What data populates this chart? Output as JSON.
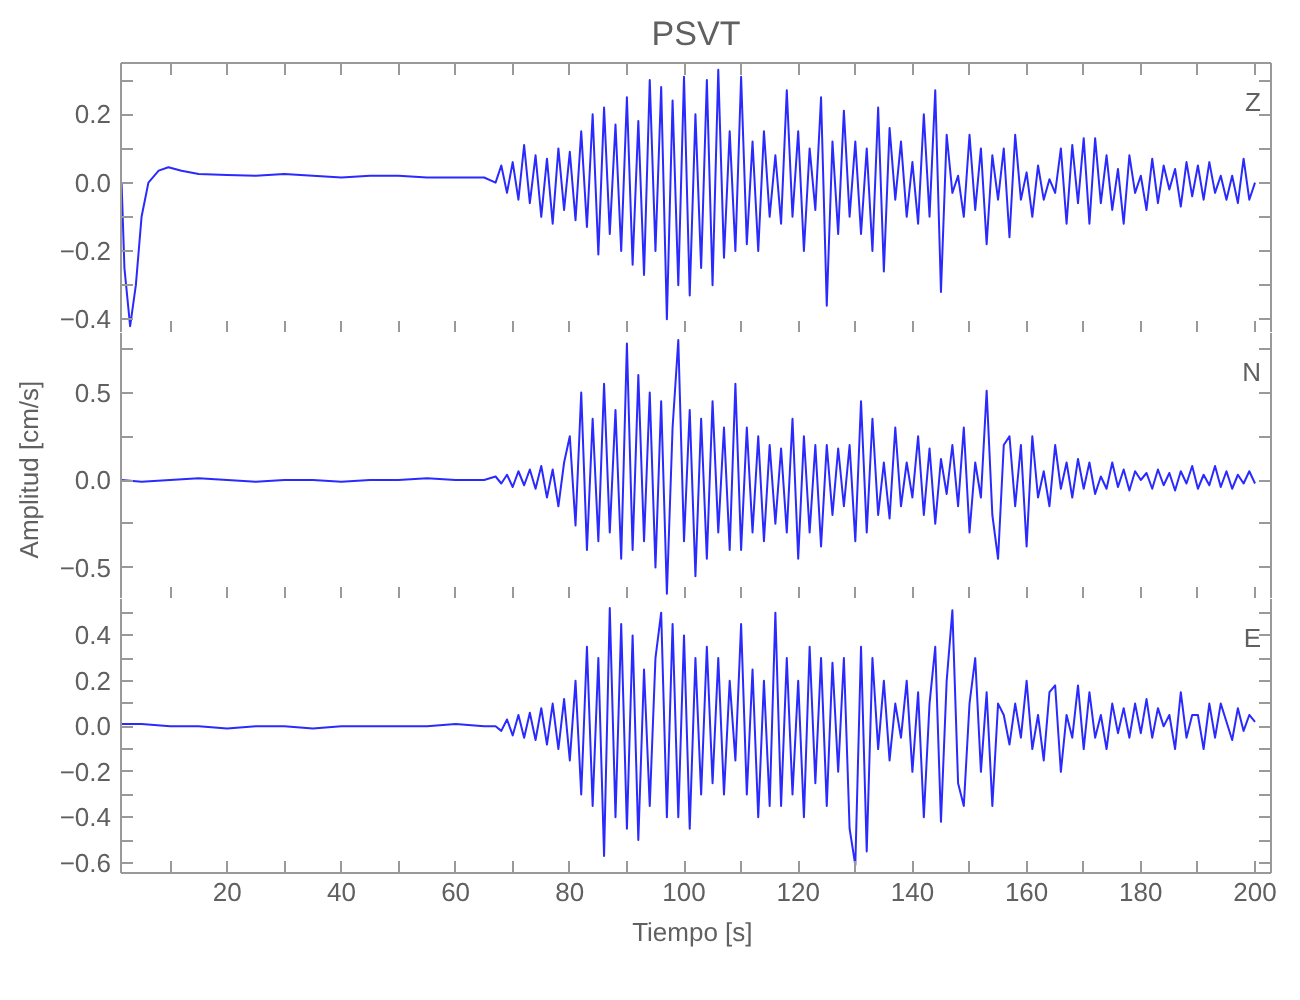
{
  "chart_data": [
    {
      "type": "line",
      "title": "PSVT",
      "xlim": [
        1.4,
        202.8
      ],
      "ylim": [
        -0.44,
        0.35
      ],
      "tick_labels": "y",
      "grid": false,
      "xticks": [
        {
          "value": 10,
          "label": null
        },
        20,
        {
          "value": 30,
          "label": null
        },
        40,
        {
          "value": 50,
          "label": null
        },
        60,
        {
          "value": 70,
          "label": null
        },
        80,
        {
          "value": 90,
          "label": null
        },
        100,
        {
          "value": 110,
          "label": null
        },
        120,
        {
          "value": 130,
          "label": null
        },
        140,
        {
          "value": 150,
          "label": null
        },
        160,
        {
          "value": 170,
          "label": null
        },
        180,
        {
          "value": 190,
          "label": null
        },
        200
      ],
      "yticks": [
        {
          "value": -0.4,
          "label": "−0.4"
        },
        {
          "value": -0.3,
          "label": null
        },
        {
          "value": -0.2,
          "label": "−0.2"
        },
        {
          "value": -0.1,
          "label": null
        },
        {
          "value": 0,
          "label": "0.0"
        },
        {
          "value": 0.1,
          "label": null
        },
        {
          "value": 0.2,
          "label": "0.2"
        },
        {
          "value": 0.3,
          "label": null
        }
      ],
      "series": [
        {
          "name": "Z",
          "color": "#2a2aff",
          "x": [
            1.5,
            2,
            3,
            4,
            5,
            6.2,
            8,
            9.7,
            12,
            15,
            20,
            25,
            30,
            35,
            40,
            45,
            50,
            55,
            60,
            65,
            67,
            68,
            69,
            70,
            71,
            72,
            73,
            74,
            75,
            76,
            77,
            78,
            79,
            80,
            81,
            82,
            83,
            84,
            85,
            86,
            87,
            88,
            89,
            90,
            91,
            92,
            93,
            94,
            95,
            96,
            97,
            98,
            99,
            100,
            101,
            102,
            103,
            104,
            105,
            106,
            107,
            108,
            109,
            110,
            111,
            112,
            113,
            114,
            115,
            116,
            117,
            118,
            119,
            120,
            121,
            122,
            123,
            124,
            125,
            126,
            127,
            128,
            129,
            130,
            131,
            132,
            133,
            134,
            135,
            136,
            137,
            138,
            139,
            140,
            141,
            142,
            143,
            144,
            145,
            146,
            147,
            148,
            149,
            150,
            151,
            152,
            153,
            154,
            155,
            156,
            157,
            158,
            159,
            160,
            161,
            162,
            163,
            164,
            165,
            166,
            167,
            168,
            169,
            170,
            171,
            172,
            173,
            174,
            175,
            176,
            177,
            178,
            179,
            180,
            181,
            182,
            183,
            184,
            185,
            186,
            187,
            188,
            189,
            190,
            191,
            192,
            193,
            194,
            195,
            196,
            197,
            198,
            199,
            200
          ],
          "values": [
            0.0,
            -0.25,
            -0.42,
            -0.3,
            -0.1,
            0.0,
            0.035,
            0.045,
            0.035,
            0.025,
            0.022,
            0.02,
            0.025,
            0.02,
            0.015,
            0.02,
            0.02,
            0.015,
            0.015,
            0.015,
            0.0,
            0.05,
            -0.03,
            0.06,
            -0.05,
            0.11,
            -0.06,
            0.08,
            -0.1,
            0.07,
            -0.12,
            0.1,
            -0.08,
            0.09,
            -0.11,
            0.15,
            -0.13,
            0.2,
            -0.21,
            0.22,
            -0.15,
            0.17,
            -0.2,
            0.25,
            -0.24,
            0.18,
            -0.27,
            0.3,
            -0.2,
            0.28,
            -0.4,
            0.24,
            -0.3,
            0.31,
            -0.33,
            0.2,
            -0.25,
            0.3,
            -0.3,
            0.33,
            -0.22,
            0.15,
            -0.2,
            0.31,
            -0.18,
            0.12,
            -0.2,
            0.15,
            -0.1,
            0.08,
            -0.12,
            0.27,
            -0.1,
            0.15,
            -0.2,
            0.1,
            -0.08,
            0.25,
            -0.36,
            0.12,
            -0.15,
            0.21,
            -0.1,
            0.12,
            -0.15,
            0.1,
            -0.2,
            0.22,
            -0.26,
            0.16,
            -0.05,
            0.12,
            -0.1,
            0.06,
            -0.12,
            0.2,
            -0.1,
            0.27,
            -0.32,
            0.14,
            -0.03,
            0.02,
            -0.1,
            0.14,
            -0.08,
            0.1,
            -0.18,
            0.08,
            -0.05,
            0.1,
            -0.16,
            0.14,
            -0.05,
            0.03,
            -0.1,
            0.05,
            -0.05,
            0.01,
            -0.03,
            0.1,
            -0.12,
            0.11,
            -0.06,
            0.13,
            -0.12,
            0.13,
            -0.06,
            0.08,
            -0.08,
            0.04,
            -0.12,
            0.08,
            -0.03,
            0.02,
            -0.08,
            0.07,
            -0.06,
            0.05,
            -0.02,
            0.04,
            -0.07,
            0.06,
            -0.04,
            0.05,
            -0.05,
            0.06,
            -0.03,
            0.02,
            -0.05,
            0.02,
            -0.06,
            0.07,
            -0.05,
            0.0
          ]
        }
      ]
    },
    {
      "type": "line",
      "ylabel": "Amplitud  [cm/s]",
      "xlim": [
        1.4,
        202.8
      ],
      "ylim": [
        -0.68,
        0.84
      ],
      "tick_labels": "y",
      "grid": false,
      "xticks": [
        {
          "value": 10,
          "label": null
        },
        20,
        {
          "value": 30,
          "label": null
        },
        40,
        {
          "value": 50,
          "label": null
        },
        60,
        {
          "value": 70,
          "label": null
        },
        80,
        {
          "value": 90,
          "label": null
        },
        100,
        {
          "value": 110,
          "label": null
        },
        120,
        {
          "value": 130,
          "label": null
        },
        140,
        {
          "value": 150,
          "label": null
        },
        160,
        {
          "value": 170,
          "label": null
        },
        180,
        {
          "value": 190,
          "label": null
        },
        200
      ],
      "yticks": [
        {
          "value": -0.5,
          "label": "−0.5"
        },
        {
          "value": -0.25,
          "label": null
        },
        {
          "value": 0,
          "label": "0.0"
        },
        {
          "value": 0.25,
          "label": null
        },
        0.5,
        {
          "value": 0.75,
          "label": null
        }
      ],
      "series": [
        {
          "name": "N",
          "color": "#2a2aff",
          "x": [
            1.5,
            5,
            10,
            15,
            20,
            25,
            30,
            35,
            40,
            45,
            50,
            55,
            60,
            65,
            67,
            68,
            69,
            70,
            71,
            72,
            73,
            74,
            75,
            76,
            77,
            78,
            79,
            80,
            81,
            82,
            83,
            84,
            85,
            86,
            87,
            88,
            89,
            90,
            91,
            92,
            93,
            94,
            95,
            96,
            97,
            98,
            99,
            100,
            101,
            102,
            103,
            104,
            105,
            106,
            107,
            108,
            109,
            110,
            111,
            112,
            113,
            114,
            115,
            116,
            117,
            118,
            119,
            120,
            121,
            122,
            123,
            124,
            125,
            126,
            127,
            128,
            129,
            130,
            131,
            132,
            133,
            134,
            135,
            136,
            137,
            138,
            139,
            140,
            141,
            142,
            143,
            144,
            145,
            146,
            147,
            148,
            149,
            150,
            151,
            152,
            153,
            154,
            155,
            156,
            157,
            158,
            159,
            160,
            161,
            162,
            163,
            164,
            165,
            166,
            167,
            168,
            169,
            170,
            171,
            172,
            173,
            174,
            175,
            176,
            177,
            178,
            179,
            180,
            181,
            182,
            183,
            184,
            185,
            186,
            187,
            188,
            189,
            190,
            191,
            192,
            193,
            194,
            195,
            196,
            197,
            198,
            199,
            200
          ],
          "values": [
            0.0,
            -0.01,
            0.0,
            0.01,
            0.0,
            -0.01,
            0.0,
            0.0,
            -0.01,
            0.0,
            0.0,
            0.01,
            0.0,
            0.0,
            0.02,
            -0.02,
            0.03,
            -0.04,
            0.05,
            -0.03,
            0.06,
            -0.05,
            0.08,
            -0.1,
            0.06,
            -0.15,
            0.1,
            0.25,
            -0.26,
            0.5,
            -0.4,
            0.35,
            -0.35,
            0.55,
            -0.3,
            0.4,
            -0.45,
            0.78,
            -0.4,
            0.6,
            -0.35,
            0.5,
            -0.5,
            0.45,
            -0.65,
            0.3,
            0.8,
            -0.35,
            0.4,
            -0.55,
            0.35,
            -0.45,
            0.45,
            -0.3,
            0.3,
            -0.4,
            0.55,
            -0.4,
            0.3,
            -0.3,
            0.25,
            -0.35,
            0.2,
            -0.25,
            0.18,
            -0.3,
            0.35,
            -0.45,
            0.25,
            -0.3,
            0.2,
            -0.38,
            0.2,
            -0.2,
            0.18,
            -0.15,
            0.2,
            -0.35,
            0.45,
            -0.3,
            0.35,
            -0.2,
            0.1,
            -0.22,
            0.3,
            -0.15,
            0.1,
            -0.1,
            0.25,
            -0.2,
            0.18,
            -0.25,
            0.12,
            -0.08,
            0.2,
            -0.15,
            0.3,
            -0.3,
            0.1,
            -0.1,
            0.51,
            -0.2,
            -0.45,
            0.2,
            0.25,
            -0.15,
            0.2,
            -0.38,
            0.25,
            -0.1,
            0.05,
            -0.15,
            0.2,
            -0.05,
            0.1,
            -0.1,
            0.12,
            -0.05,
            0.1,
            -0.08,
            0.02,
            -0.05,
            0.1,
            -0.04,
            0.06,
            -0.06,
            0.05,
            0.0,
            0.04,
            -0.05,
            0.06,
            -0.03,
            0.04,
            -0.06,
            0.05,
            -0.02,
            0.08,
            -0.05,
            0.03,
            -0.03,
            0.08,
            -0.04,
            0.05,
            -0.05,
            0.03,
            -0.02,
            0.05,
            -0.02
          ]
        }
      ]
    },
    {
      "type": "line",
      "xlabel": "Tiempo  [s]",
      "xlim": [
        1.4,
        202.8
      ],
      "ylim": [
        -0.645,
        0.56
      ],
      "grid": false,
      "xticks": [
        {
          "value": 10,
          "label": null
        },
        20,
        {
          "value": 30,
          "label": null
        },
        40,
        {
          "value": 50,
          "label": null
        },
        60,
        {
          "value": 70,
          "label": null
        },
        80,
        {
          "value": 90,
          "label": null
        },
        100,
        {
          "value": 110,
          "label": null
        },
        120,
        {
          "value": 130,
          "label": null
        },
        140,
        {
          "value": 150,
          "label": null
        },
        160,
        {
          "value": 170,
          "label": null
        },
        180,
        {
          "value": 190,
          "label": null
        },
        200
      ],
      "yticks": [
        {
          "value": -0.6,
          "label": "−0.6"
        },
        {
          "value": -0.5,
          "label": null
        },
        {
          "value": -0.4,
          "label": "−0.4"
        },
        {
          "value": -0.3,
          "label": null
        },
        {
          "value": -0.2,
          "label": "−0.2"
        },
        {
          "value": -0.1,
          "label": null
        },
        {
          "value": 0,
          "label": "0.0"
        },
        {
          "value": 0.1,
          "label": null
        },
        0.2,
        {
          "value": 0.3,
          "label": null
        },
        0.4,
        {
          "value": 0.5,
          "label": null
        }
      ],
      "series": [
        {
          "name": "E",
          "color": "#2a2aff",
          "x": [
            1.5,
            5,
            10,
            15,
            20,
            25,
            30,
            35,
            40,
            45,
            50,
            55,
            60,
            65,
            67,
            68,
            69,
            70,
            71,
            72,
            73,
            74,
            75,
            76,
            77,
            78,
            79,
            80,
            81,
            82,
            83,
            84,
            85,
            86,
            87,
            88,
            89,
            90,
            91,
            92,
            93,
            94,
            95,
            96,
            97,
            98,
            99,
            100,
            101,
            102,
            103,
            104,
            105,
            106,
            107,
            108,
            109,
            110,
            111,
            112,
            113,
            114,
            115,
            116,
            117,
            118,
            119,
            120,
            121,
            122,
            123,
            124,
            125,
            126,
            127,
            128,
            129,
            130,
            131,
            132,
            133,
            134,
            135,
            136,
            137,
            138,
            139,
            140,
            141,
            142,
            143,
            144,
            145,
            146,
            147,
            148,
            149,
            150,
            151,
            152,
            153,
            154,
            155,
            156,
            157,
            158,
            159,
            160,
            161,
            162,
            163,
            164,
            165,
            166,
            167,
            168,
            169,
            170,
            171,
            172,
            173,
            174,
            175,
            176,
            177,
            178,
            179,
            180,
            181,
            182,
            183,
            184,
            185,
            186,
            187,
            188,
            189,
            190,
            191,
            192,
            193,
            194,
            195,
            196,
            197,
            198,
            199,
            200
          ],
          "values": [
            0.01,
            0.01,
            0.0,
            0.0,
            -0.01,
            0.0,
            0.0,
            -0.01,
            0.0,
            0.0,
            0.0,
            0.0,
            0.01,
            0.0,
            0.0,
            -0.02,
            0.03,
            -0.04,
            0.05,
            -0.05,
            0.06,
            -0.06,
            0.08,
            -0.08,
            0.1,
            -0.1,
            0.12,
            -0.15,
            0.2,
            -0.3,
            0.35,
            -0.35,
            0.3,
            -0.57,
            0.52,
            -0.4,
            0.45,
            -0.45,
            0.4,
            -0.5,
            0.25,
            -0.35,
            0.3,
            0.5,
            -0.4,
            0.45,
            -0.4,
            0.4,
            -0.45,
            0.3,
            -0.3,
            0.35,
            -0.25,
            0.3,
            -0.3,
            0.2,
            -0.15,
            0.45,
            -0.3,
            0.25,
            -0.4,
            0.2,
            -0.35,
            0.5,
            -0.35,
            0.3,
            -0.3,
            0.2,
            -0.4,
            0.35,
            -0.25,
            0.3,
            -0.35,
            0.28,
            -0.2,
            0.3,
            -0.45,
            -0.61,
            0.35,
            -0.55,
            0.3,
            -0.1,
            0.2,
            -0.15,
            0.1,
            -0.05,
            0.2,
            -0.2,
            0.15,
            -0.4,
            0.1,
            0.35,
            -0.42,
            0.2,
            0.51,
            -0.25,
            -0.35,
            0.1,
            0.3,
            -0.2,
            0.15,
            -0.35,
            0.1,
            0.05,
            -0.08,
            0.1,
            -0.05,
            0.2,
            -0.1,
            0.05,
            -0.15,
            0.15,
            0.18,
            -0.2,
            0.05,
            -0.05,
            0.18,
            -0.1,
            0.15,
            -0.05,
            0.05,
            -0.1,
            0.1,
            -0.03,
            0.08,
            -0.05,
            0.1,
            -0.03,
            0.12,
            -0.05,
            0.08,
            0.0,
            0.05,
            -0.1,
            0.15,
            -0.05,
            0.05,
            0.05,
            -0.1,
            0.1,
            -0.05,
            0.1,
            0.02,
            -0.06,
            0.08,
            -0.02,
            0.05,
            0.02
          ]
        }
      ]
    }
  ]
}
